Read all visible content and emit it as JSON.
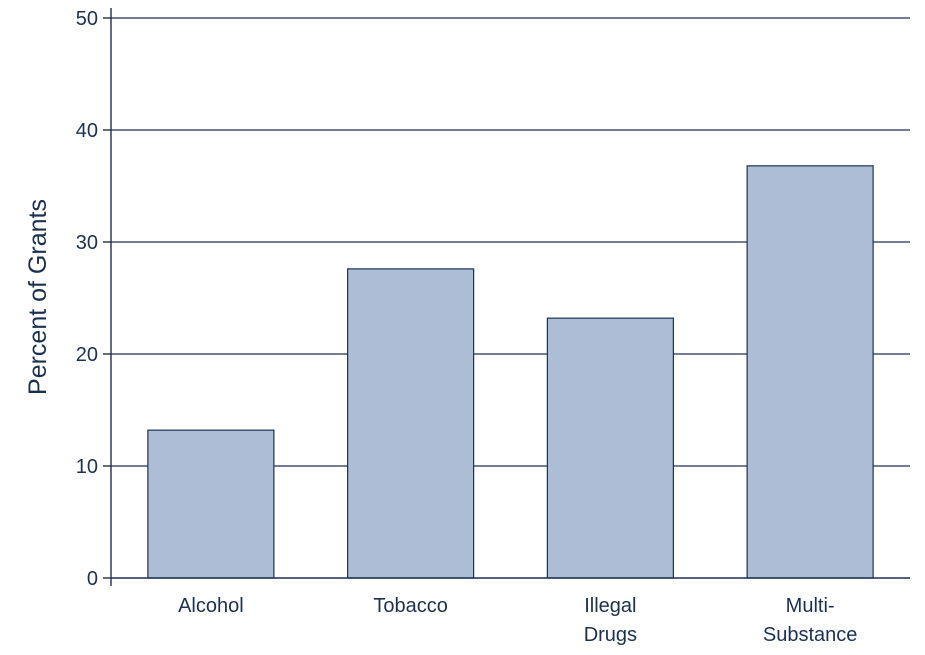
{
  "chart_data": {
    "type": "bar",
    "categories": [
      [
        "Alcohol"
      ],
      [
        "Tobacco"
      ],
      [
        "Illegal",
        "Drugs"
      ],
      [
        "Multi-",
        "Substance"
      ]
    ],
    "values": [
      13.2,
      27.6,
      23.2,
      36.8
    ],
    "ylabel": "Percent of Grants",
    "xlabel": "",
    "title": "",
    "ylim": [
      0,
      50
    ],
    "yticks": [
      0,
      10,
      20,
      30,
      40,
      50
    ],
    "grid": true,
    "legend": "none"
  },
  "colors": {
    "bar_fill": "#adbdd5",
    "bar_stroke": "#1c3152",
    "axis": "#1c3152",
    "grid": "#1c3152",
    "text": "#1c3152"
  }
}
